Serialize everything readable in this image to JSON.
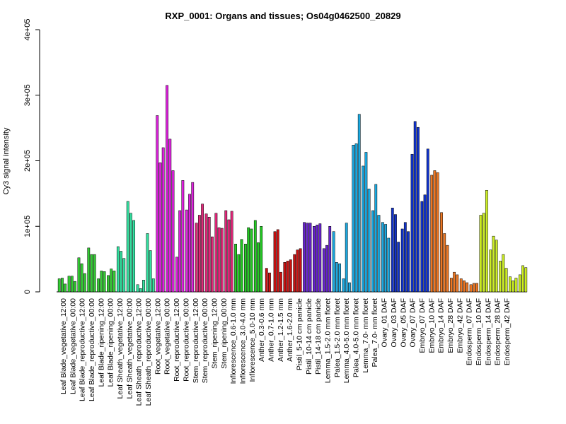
{
  "chart_data": {
    "type": "bar",
    "title": "RXP_0001: Organs and tissues; Os04g0462500_20829",
    "ylabel": "Cy3 signal intensity",
    "xlabel": "",
    "ylim": [
      0,
      400000
    ],
    "yticks": [
      {
        "value": 0,
        "label": "0"
      },
      {
        "value": 100000,
        "label": "1e+05"
      },
      {
        "value": 200000,
        "label": "2e+05"
      },
      {
        "value": 300000,
        "label": "3e+05"
      },
      {
        "value": 400000,
        "label": "4e+05"
      }
    ],
    "grid": false,
    "groups": [
      {
        "color": "#33cc33",
        "values": [
          20000,
          21000,
          12000
        ]
      },
      {
        "color": "#33cc33",
        "values": [
          24000,
          24000,
          16000
        ]
      },
      {
        "color": "#33cc33",
        "values": [
          52000,
          43000,
          28000
        ]
      },
      {
        "color": "#33cc33",
        "values": [
          67000,
          57000,
          57000
        ]
      },
      {
        "color": "#33cc33",
        "values": [
          20000,
          32000,
          31000
        ]
      },
      {
        "color": "#33cc33",
        "values": [
          25000,
          35000,
          32000
        ]
      },
      {
        "color": "#33e0a0",
        "values": [
          69000,
          62000,
          51000
        ]
      },
      {
        "color": "#33e0a0",
        "values": [
          138000,
          120000,
          109000
        ]
      },
      {
        "color": "#33e0a0",
        "values": [
          11000,
          5000,
          18000
        ]
      },
      {
        "color": "#33e0a0",
        "values": [
          89000,
          63000,
          20000
        ]
      },
      {
        "color": "#dd22dd",
        "values": [
          269000,
          197000,
          220000
        ]
      },
      {
        "color": "#dd22dd",
        "values": [
          315000,
          233000,
          185000
        ]
      },
      {
        "color": "#dd22dd",
        "values": [
          53000,
          124000,
          170000
        ]
      },
      {
        "color": "#dd22dd",
        "values": [
          125000,
          149000,
          167000
        ]
      },
      {
        "color": "#e0287a",
        "values": [
          105000,
          117000,
          134000
        ]
      },
      {
        "color": "#e0287a",
        "values": [
          119000,
          114000,
          84000
        ]
      },
      {
        "color": "#e0287a",
        "values": [
          120000,
          98000,
          97000
        ]
      },
      {
        "color": "#e0287a",
        "values": [
          124000,
          110000,
          123000
        ]
      },
      {
        "color": "#22cc22",
        "values": [
          73000,
          57000,
          80000
        ]
      },
      {
        "color": "#22cc22",
        "values": [
          73000,
          98000,
          96000
        ]
      },
      {
        "color": "#22cc22",
        "values": [
          109000,
          75000,
          100000
        ]
      },
      {
        "color": "#cc1111",
        "values": [
          36000,
          29000
        ]
      },
      {
        "color": "#cc1111",
        "values": [
          92000,
          95000,
          30000
        ]
      },
      {
        "color": "#cc1111",
        "values": [
          45000,
          47000,
          49000
        ]
      },
      {
        "color": "#cc1111",
        "values": [
          57000,
          64000,
          66000
        ]
      },
      {
        "color": "#6622cc",
        "values": [
          106000,
          105000,
          105000
        ]
      },
      {
        "color": "#6622cc",
        "values": [
          100000,
          102000,
          104000
        ]
      },
      {
        "color": "#6622cc",
        "values": [
          66000,
          71000,
          100000
        ]
      },
      {
        "color": "#1aa8e0",
        "values": [
          92000,
          45000,
          43000
        ]
      },
      {
        "color": "#1aa8e0",
        "values": [
          20000,
          105000,
          14000
        ]
      },
      {
        "color": "#1aa8e0",
        "values": [
          224000,
          226000,
          271000
        ]
      },
      {
        "color": "#1aa8e0",
        "values": [
          192000,
          213000,
          157000
        ]
      },
      {
        "color": "#1aa8e0",
        "values": [
          124000,
          164000,
          117000
        ]
      },
      {
        "color": "#1aa8e0",
        "values": [
          106000,
          103000,
          82000
        ]
      },
      {
        "color": "#1133cc",
        "values": [
          128000,
          118000,
          76000
        ]
      },
      {
        "color": "#1133cc",
        "values": [
          96000,
          106000,
          92000
        ]
      },
      {
        "color": "#1133cc",
        "values": [
          210000,
          260000,
          251000
        ]
      },
      {
        "color": "#1133cc",
        "values": [
          138000,
          148000,
          218000
        ]
      },
      {
        "color": "#ee7722",
        "values": [
          178000,
          185000,
          182000
        ]
      },
      {
        "color": "#ee7722",
        "values": [
          121000,
          89000,
          71000
        ]
      },
      {
        "color": "#ee7722",
        "values": [
          21000,
          30000,
          26000
        ]
      },
      {
        "color": "#ee7722",
        "values": [
          20000,
          17000,
          14000
        ]
      },
      {
        "color": "#ee7722",
        "values": [
          11000,
          13000,
          13000
        ]
      },
      {
        "color": "#ccee22",
        "values": [
          117000,
          120000,
          155000
        ]
      },
      {
        "color": "#ccee22",
        "values": [
          64000,
          85000,
          79000
        ]
      },
      {
        "color": "#ccee22",
        "values": [
          47000,
          57000,
          36000
        ]
      },
      {
        "color": "#ccee22",
        "values": [
          23000,
          17000,
          21000
        ]
      },
      {
        "color": "#ccee22",
        "values": [
          26000,
          40000,
          37000
        ]
      }
    ],
    "categories": [
      "Leaf Blade_vegetative_12:00",
      "Leaf Blade_vegetative_00:00",
      "Leaf Blade_reproductive_12:00",
      "Leaf Blade_reproductive_00:00",
      "Leaf Blade_ripening_12:00",
      "Leaf Blade_ripening_00:00",
      "Leaf Sheath_vegetative_12:00",
      "Leaf Sheath_vegetative_00:00",
      "Leaf Sheath_reproductive_12:00",
      "Leaf Sheath_reproductive_00:00",
      "Root_vegetative_12:00",
      "Root_vegetative_00:00",
      "Root_reproductive_12:00",
      "Root_reproductive_00:00",
      "Stem_reproductive_12:00",
      "Stem_reproductive_00:00",
      "Stem_ripening_12:00",
      "Stem_ripening_00:00",
      "Inflorescence_0.6-1.0 mm",
      "Inflorescence_3.0-4.0 mm",
      "Inflorescence_5.0-10 mm",
      "Anther_0.3-0.6 mm",
      "Anther_0.7-1.0 mm",
      "Anther_1.2-1.5 mm",
      "Anther_1.6-2.0 mm",
      "Pistil_5-10 cm panicle",
      "Pistil_10-14 cm panicle",
      "Pistil_14-18 cm panicle",
      "Lemma_1.5-2.0 mm floret",
      "Palea_1.5-2.0 mm floret",
      "Lemma_4.0-5.0 mm floret",
      "Palea_4.0-5.0 mm floret",
      "Lemma_7.0- mm floret",
      "Palea_7.0- mm floret",
      "Ovary_01 DAF",
      "Ovary_03 DAF",
      "Ovary_05 DAF",
      "Ovary_07 DAF",
      "Embryo_07 DAF",
      "Embryo_10 DAF",
      "Embryo_14 DAF",
      "Embryo_28 DAF",
      "Embryo_42 DAF",
      "Endosperm_07 DAF",
      "Endosperm_10 DAF",
      "Endosperm_14 DAF",
      "Endosperm_28 DAF",
      "Endosperm_42 DAF"
    ],
    "labeled_category_indices": [
      0,
      1,
      2,
      3,
      4,
      5,
      6,
      7,
      8,
      9,
      10,
      11,
      12,
      13,
      14,
      15,
      16,
      17,
      18,
      19,
      20,
      21,
      22,
      23,
      24,
      25,
      26,
      27,
      28,
      29,
      30,
      31,
      32,
      33,
      34,
      35,
      36,
      37,
      38,
      39,
      40,
      41,
      42,
      43,
      44,
      45,
      46,
      47
    ]
  }
}
